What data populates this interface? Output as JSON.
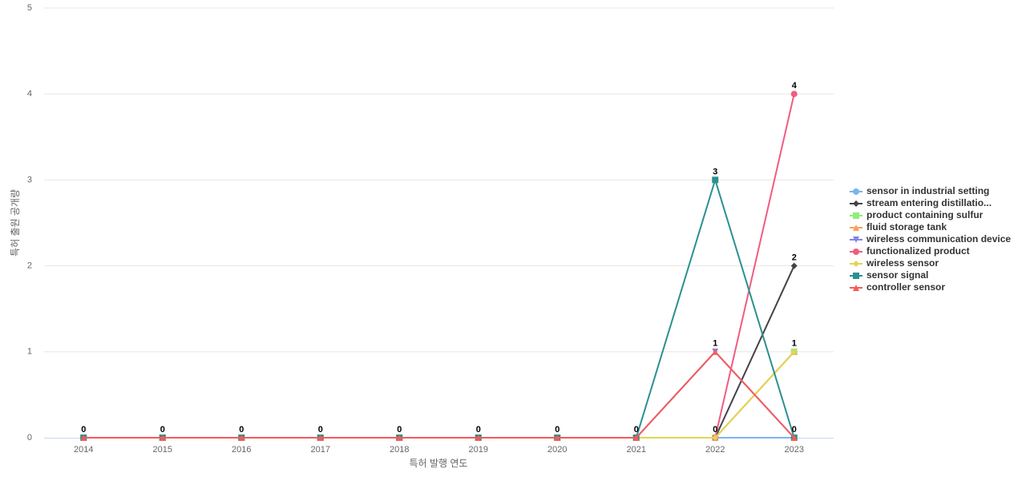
{
  "chart_data": {
    "type": "line",
    "x_label": "특허 발행 연도",
    "y_label": "특허 출원 공개량",
    "categories": [
      "2014",
      "2015",
      "2016",
      "2017",
      "2018",
      "2019",
      "2020",
      "2021",
      "2022",
      "2023"
    ],
    "ylim": [
      0,
      5
    ],
    "yticks": [
      0,
      1,
      2,
      3,
      4,
      5
    ],
    "grid": true,
    "legend": "right",
    "series": [
      {
        "name": "sensor in industrial setting",
        "color": "#7cb5ec",
        "symbol": "circle",
        "values": [
          0,
          0,
          0,
          0,
          0,
          0,
          0,
          0,
          0,
          0
        ]
      },
      {
        "name": "stream entering distillatio...",
        "color": "#434348",
        "symbol": "diamond",
        "values": [
          0,
          0,
          0,
          0,
          0,
          0,
          0,
          0,
          0,
          2
        ]
      },
      {
        "name": "product containing sulfur",
        "color": "#90ed7d",
        "symbol": "square",
        "values": [
          0,
          0,
          0,
          0,
          0,
          0,
          0,
          0,
          0,
          1
        ]
      },
      {
        "name": "fluid storage tank",
        "color": "#f7a35c",
        "symbol": "triangle",
        "values": [
          0,
          0,
          0,
          0,
          0,
          0,
          0,
          0,
          0,
          1
        ]
      },
      {
        "name": "wireless communication device",
        "color": "#8085e9",
        "symbol": "triangle-down",
        "values": [
          0,
          0,
          0,
          0,
          0,
          0,
          0,
          0,
          1,
          0
        ]
      },
      {
        "name": "functionalized product",
        "color": "#f15c80",
        "symbol": "circle",
        "values": [
          0,
          0,
          0,
          0,
          0,
          0,
          0,
          0,
          0,
          4
        ]
      },
      {
        "name": "wireless sensor",
        "color": "#e4d354",
        "symbol": "diamond",
        "values": [
          0,
          0,
          0,
          0,
          0,
          0,
          0,
          0,
          0,
          1
        ]
      },
      {
        "name": "sensor signal",
        "color": "#2b908f",
        "symbol": "square",
        "values": [
          0,
          0,
          0,
          0,
          0,
          0,
          0,
          0,
          3,
          0
        ]
      },
      {
        "name": "controller sensor",
        "color": "#f45b5b",
        "symbol": "triangle",
        "values": [
          0,
          0,
          0,
          0,
          0,
          0,
          0,
          0,
          1,
          0
        ]
      }
    ]
  }
}
